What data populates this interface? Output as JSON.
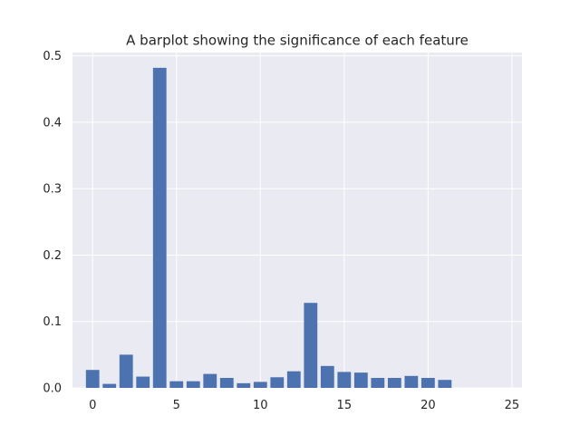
{
  "chart_data": {
    "type": "bar",
    "title": "A barplot showing the significance of each feature",
    "xlabel": "",
    "ylabel": "",
    "x": [
      0,
      1,
      2,
      3,
      4,
      5,
      6,
      7,
      8,
      9,
      10,
      11,
      12,
      13,
      14,
      15,
      16,
      17,
      18,
      19,
      20,
      21,
      22,
      23,
      24
    ],
    "values": [
      0.027,
      0.006,
      0.05,
      0.017,
      0.482,
      0.01,
      0.01,
      0.021,
      0.015,
      0.007,
      0.009,
      0.016,
      0.025,
      0.128,
      0.033,
      0.024,
      0.023,
      0.015,
      0.015,
      0.018,
      0.015,
      0.012,
      0.0,
      0.0,
      0.0
    ],
    "xlim": [
      -1.2,
      25.6
    ],
    "ylim": [
      0,
      0.505
    ],
    "xticks": [
      0,
      5,
      10,
      15,
      20,
      25
    ],
    "yticks": [
      0.0,
      0.1,
      0.2,
      0.3,
      0.4,
      0.5
    ],
    "xtick_labels": [
      "0",
      "5",
      "10",
      "15",
      "20",
      "25"
    ],
    "ytick_labels": [
      "0.0",
      "0.1",
      "0.2",
      "0.3",
      "0.4",
      "0.5"
    ],
    "grid": true,
    "legend": false,
    "colors": {
      "bar": "#4c72b0",
      "plot_background": "#eaeaf2",
      "grid": "#ffffff"
    }
  }
}
